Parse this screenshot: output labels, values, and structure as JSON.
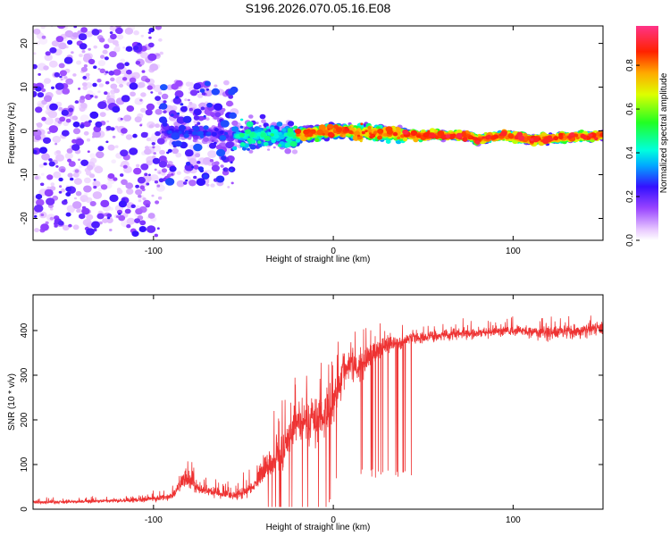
{
  "figure_title": "S196.2026.070.05.16.E08",
  "chart_data": [
    {
      "type": "heatmap",
      "title": "S196.2026.070.05.16.E08",
      "xlabel": "Height of straight line (km)",
      "ylabel": "Frequency (Hz)",
      "xlim": [
        -167,
        150
      ],
      "ylim": [
        -25,
        24
      ],
      "x_ticks": [
        -100,
        0,
        100
      ],
      "x_tick_labels": [
        "-100",
        "0",
        "100"
      ],
      "y_ticks": [
        -20,
        -10,
        0,
        10,
        20
      ],
      "y_tick_labels": [
        "-20",
        "-10",
        "0",
        "10",
        "20"
      ],
      "colorbar": {
        "label": "Normalized spectral amplitude",
        "range": [
          0,
          0.98
        ],
        "ticks": [
          0,
          0.2,
          0.4,
          0.6,
          0.8
        ],
        "tick_labels": [
          "0.0",
          "0.2",
          "0.4",
          "0.6",
          "0.8"
        ]
      },
      "description_of_regions": [
        {
          "x_range": [
            -167,
            -95
          ],
          "freq_spread": 24,
          "amplitude": [
            0.05,
            0.25
          ]
        },
        {
          "x_range": [
            -95,
            -55
          ],
          "freq_spread": 12,
          "amplitude": [
            0.1,
            0.3
          ]
        },
        {
          "x_range": [
            -55,
            -20
          ],
          "freq_spread": 5,
          "amplitude": [
            0.2,
            0.5
          ]
        },
        {
          "x_range": [
            -20,
            40
          ],
          "freq_spread": 2.5,
          "amplitude": [
            0.4,
            0.9
          ]
        },
        {
          "x_range": [
            40,
            150
          ],
          "freq_spread": 1.5,
          "amplitude": [
            0.4,
            0.95
          ]
        }
      ],
      "ridge_frequency": [
        {
          "x": -100,
          "y": 0
        },
        {
          "x": -50,
          "y": -1
        },
        {
          "x": -20,
          "y": -1
        },
        {
          "x": 0,
          "y": 0
        },
        {
          "x": 20,
          "y": -0.5
        },
        {
          "x": 50,
          "y": -1
        },
        {
          "x": 75,
          "y": -1
        },
        {
          "x": 80,
          "y": -2
        },
        {
          "x": 95,
          "y": -1
        },
        {
          "x": 110,
          "y": -2
        },
        {
          "x": 150,
          "y": -1
        }
      ]
    },
    {
      "type": "line",
      "xlabel": "Height of straight line (km)",
      "ylabel": "SNR (10 * v/v)",
      "xlim": [
        -167,
        150
      ],
      "ylim": [
        0,
        480
      ],
      "x_ticks": [
        -100,
        0,
        100
      ],
      "x_tick_labels": [
        "-100",
        "0",
        "100"
      ],
      "y_ticks": [
        0,
        100,
        200,
        300,
        400
      ],
      "y_tick_labels": [
        "0",
        "100",
        "200",
        "300",
        "400"
      ],
      "color": "#ee3333",
      "series": [
        {
          "name": "SNR",
          "x": [
            -167,
            -140,
            -110,
            -90,
            -82,
            -75,
            -65,
            -55,
            -45,
            -40,
            -35,
            -30,
            -25,
            -20,
            -15,
            -10,
            -5,
            0,
            5,
            10,
            15,
            20,
            25,
            30,
            40,
            50,
            60,
            80,
            100,
            120,
            140,
            150
          ],
          "y": [
            15,
            17,
            20,
            28,
            70,
            45,
            38,
            30,
            50,
            80,
            100,
            120,
            160,
            200,
            190,
            200,
            210,
            240,
            300,
            330,
            310,
            350,
            360,
            365,
            380,
            385,
            390,
            395,
            400,
            395,
            400,
            405
          ],
          "noise_amplitude": [
            7,
            7,
            8,
            12,
            35,
            25,
            20,
            15,
            30,
            40,
            55,
            70,
            80,
            90,
            80,
            85,
            90,
            80,
            70,
            60,
            60,
            45,
            40,
            30,
            25,
            20,
            20,
            20,
            20,
            25,
            25,
            25
          ]
        }
      ],
      "dropouts": {
        "x_range": [
          15,
          45
        ],
        "min_values": [
          70,
          70
        ]
      }
    }
  ]
}
